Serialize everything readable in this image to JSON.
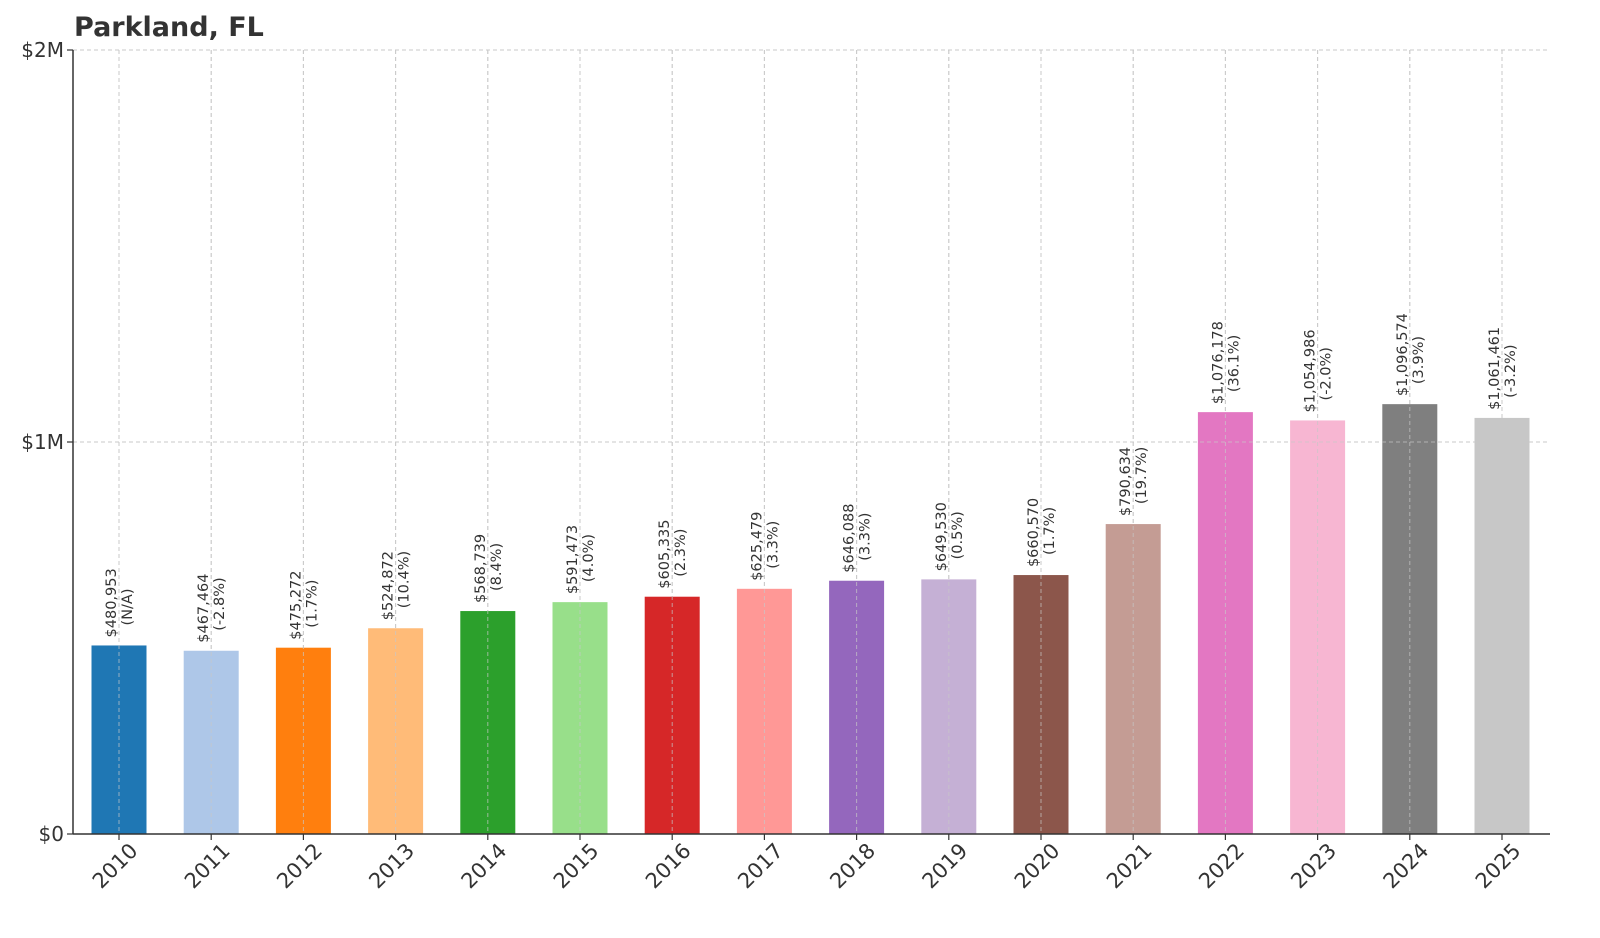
{
  "chart_data": {
    "type": "bar",
    "title": "Parkland, FL",
    "xlabel": "",
    "ylabel": "",
    "ylim": [
      0,
      2000000
    ],
    "yticks": [
      {
        "value": 0,
        "label": "$0"
      },
      {
        "value": 1000000,
        "label": "$1M"
      },
      {
        "value": 2000000,
        "label": "$2M"
      }
    ],
    "grid": true,
    "categories": [
      "2010",
      "2011",
      "2012",
      "2013",
      "2014",
      "2015",
      "2016",
      "2017",
      "2018",
      "2019",
      "2020",
      "2021",
      "2022",
      "2023",
      "2024",
      "2025"
    ],
    "values": [
      480953,
      467464,
      475272,
      524872,
      568739,
      591473,
      605335,
      625479,
      646088,
      649530,
      660570,
      790634,
      1076178,
      1054986,
      1096574,
      1061461
    ],
    "value_labels": [
      "$480,953",
      "$467,464",
      "$475,272",
      "$524,872",
      "$568,739",
      "$591,473",
      "$605,335",
      "$625,479",
      "$646,088",
      "$649,530",
      "$660,570",
      "$790,634",
      "$1,076,178",
      "$1,054,986",
      "$1,096,574",
      "$1,061,461"
    ],
    "change_labels": [
      "(N/A)",
      "(-2.8%)",
      "(1.7%)",
      "(10.4%)",
      "(8.4%)",
      "(4.0%)",
      "(2.3%)",
      "(3.3%)",
      "(3.3%)",
      "(0.5%)",
      "(1.7%)",
      "(19.7%)",
      "(36.1%)",
      "(-2.0%)",
      "(3.9%)",
      "(-3.2%)"
    ],
    "colors": [
      "#1f77b4",
      "#aec7e8",
      "#ff7f0e",
      "#ffbb78",
      "#2ca02c",
      "#98df8a",
      "#d62728",
      "#ff9896",
      "#9467bd",
      "#c5b0d5",
      "#8c564b",
      "#c49c94",
      "#e377c2",
      "#f7b6d2",
      "#7f7f7f",
      "#c7c7c7"
    ]
  }
}
